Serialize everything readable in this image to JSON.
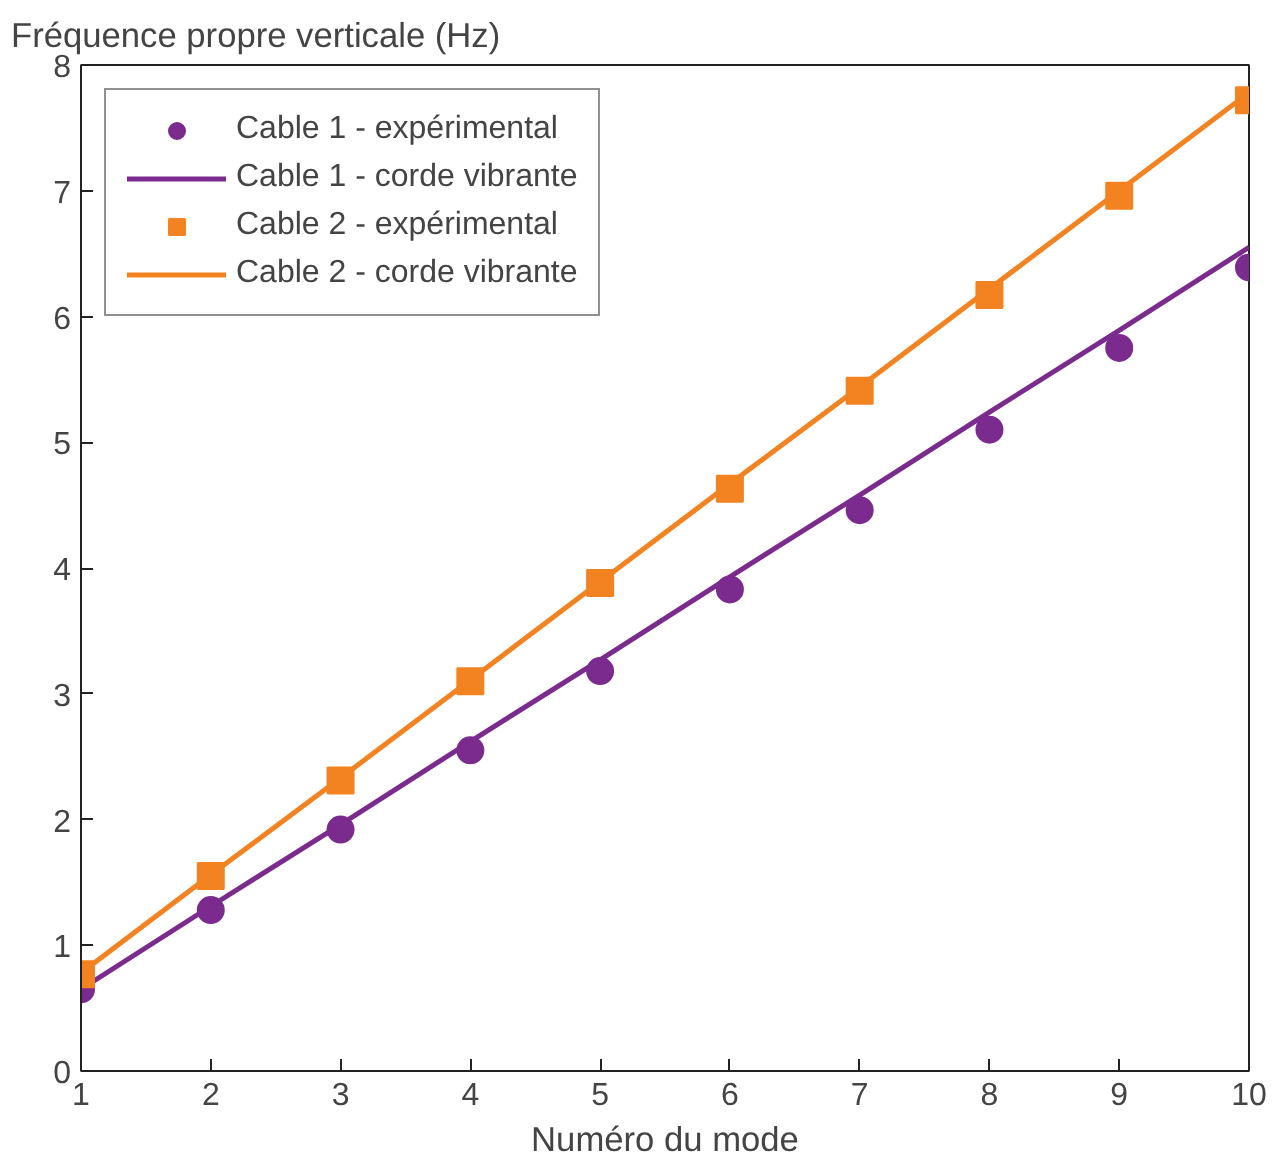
{
  "chart_data": {
    "type": "scatter",
    "xlabel": "Numéro du mode",
    "ylabel": "Fréquence propre verticale (Hz)",
    "x": [
      1,
      2,
      3,
      4,
      5,
      6,
      7,
      8,
      9,
      10
    ],
    "xlim": [
      1,
      10
    ],
    "xticks": [
      1,
      2,
      3,
      4,
      5,
      6,
      7,
      8,
      9,
      10
    ],
    "ylim": [
      0,
      8
    ],
    "yticks": [
      0,
      1,
      2,
      3,
      4,
      5,
      6,
      7,
      8
    ],
    "grid": false,
    "legend": "top left",
    "series": [
      {
        "name": "Cable 1 - expérimental",
        "color": "#7b2a8e",
        "marker": "circle",
        "values": [
          0.65,
          1.28,
          1.92,
          2.55,
          3.18,
          3.83,
          4.46,
          5.1,
          5.75,
          6.39
        ]
      },
      {
        "name": "Cable 1 - corde vibrante",
        "color": "#7b2a8e",
        "type": "line",
        "values": [
          0.65,
          1.31,
          1.96,
          2.62,
          3.27,
          3.93,
          4.58,
          5.24,
          5.89,
          6.55
        ]
      },
      {
        "name": "Cable 2 - expérimental",
        "color": "#f38221",
        "marker": "square",
        "values": [
          0.77,
          1.55,
          2.31,
          3.1,
          3.88,
          4.63,
          5.41,
          6.17,
          6.96,
          7.72
        ]
      },
      {
        "name": "Cable 2 - corde vibrante",
        "color": "#f38221",
        "type": "line",
        "values": [
          0.78,
          1.56,
          2.33,
          3.11,
          3.89,
          4.67,
          5.44,
          6.22,
          7.0,
          7.78
        ]
      }
    ]
  }
}
